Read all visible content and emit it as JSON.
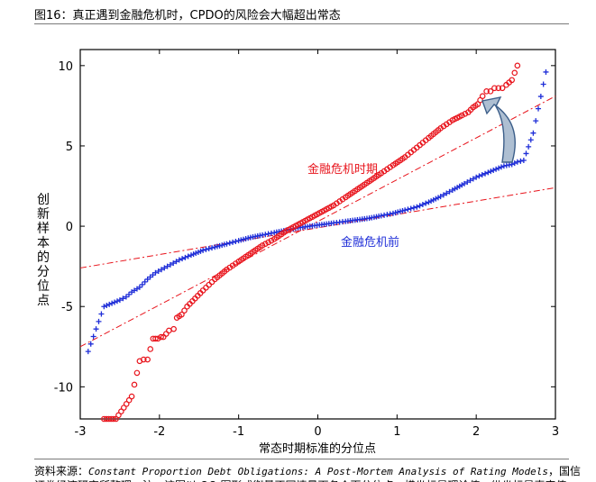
{
  "figure": {
    "title": "图16：真正遇到金融危机时，CPDO的风险会大幅超出常态",
    "source_prefix": "资料来源：",
    "source_title": "Constant Proportion Debt Obligations: A Post-Mortem Analysis of Rating Models",
    "source_suffix": "，国信",
    "note": "证券经济研究所整理。注：该图以 QQ 图形式衡量不同情景下各个百分位点，横坐标是理论值，纵坐标是真实值"
  },
  "chart_data": {
    "type": "scatter",
    "title": "图16：真正遇到金融危机时，CPDO的风险会大幅超出常态",
    "xlabel": "常态时期标准的分位点",
    "ylabel": "创新样本的分位点",
    "xlim": [
      -3,
      3
    ],
    "ylim": [
      -12,
      11
    ],
    "xticks": [
      -3,
      -2,
      -1,
      0,
      1,
      2,
      3
    ],
    "yticks": [
      -10,
      -5,
      0,
      5,
      10
    ],
    "annotations": [
      "金融危机时期",
      "金融危机前"
    ],
    "colors": {
      "crisis": "#e8141c",
      "pre_crisis": "#1f2ed8",
      "reference": "#e8141c",
      "arrow_fill": "#aebfd2",
      "arrow_stroke": "#3d5f8a"
    },
    "series": [
      {
        "name": "金融危机时期",
        "marker": "circle",
        "x": [
          -2.7,
          -2.55,
          -2.35,
          -2.25,
          -2.2,
          -2.15,
          -2.08,
          -2.02,
          -1.98,
          -1.95,
          -1.88,
          -1.82,
          -1.78,
          -1.72,
          -1.65,
          -1.55,
          -1.45,
          -1.3,
          -1.15,
          -1.0,
          -0.85,
          -0.7,
          -0.55,
          -0.4,
          -0.25,
          -0.1,
          0.05,
          0.2,
          0.35,
          0.5,
          0.65,
          0.8,
          0.95,
          1.1,
          1.25,
          1.4,
          1.55,
          1.7,
          1.82,
          1.9,
          1.96,
          2.02,
          2.08,
          2.13,
          2.18,
          2.23,
          2.28,
          2.33,
          2.38,
          2.45,
          2.52
        ],
        "y": [
          -12.0,
          -12.0,
          -10.6,
          -8.4,
          -8.3,
          -8.3,
          -7.0,
          -7.0,
          -6.9,
          -6.9,
          -6.5,
          -6.4,
          -5.7,
          -5.5,
          -5.0,
          -4.5,
          -4.0,
          -3.3,
          -2.7,
          -2.2,
          -1.7,
          -1.2,
          -0.8,
          -0.3,
          0.1,
          0.5,
          0.9,
          1.3,
          1.8,
          2.3,
          2.8,
          3.3,
          3.8,
          4.3,
          4.9,
          5.5,
          6.1,
          6.6,
          6.9,
          7.1,
          7.4,
          7.6,
          8.1,
          8.4,
          8.4,
          8.6,
          8.6,
          8.6,
          8.8,
          9.1,
          10.0
        ]
      },
      {
        "name": "金融危机前",
        "marker": "plus",
        "x": [
          -2.9,
          -2.7,
          -2.6,
          -2.5,
          -2.42,
          -2.35,
          -2.25,
          -2.15,
          -2.05,
          -1.9,
          -1.75,
          -1.6,
          -1.45,
          -1.3,
          -1.15,
          -1.0,
          -0.85,
          -0.7,
          -0.55,
          -0.4,
          -0.25,
          -0.1,
          0.05,
          0.2,
          0.35,
          0.5,
          0.65,
          0.8,
          0.95,
          1.1,
          1.25,
          1.4,
          1.55,
          1.7,
          1.85,
          2.0,
          2.15,
          2.25,
          2.35,
          2.45,
          2.52,
          2.6,
          2.72,
          2.88
        ],
        "y": [
          -7.8,
          -5.0,
          -4.8,
          -4.6,
          -4.4,
          -4.1,
          -3.8,
          -3.3,
          -2.9,
          -2.5,
          -2.1,
          -1.8,
          -1.5,
          -1.3,
          -1.1,
          -0.9,
          -0.7,
          -0.55,
          -0.4,
          -0.25,
          -0.1,
          0.0,
          0.1,
          0.2,
          0.3,
          0.4,
          0.5,
          0.65,
          0.8,
          1.0,
          1.2,
          1.5,
          1.85,
          2.25,
          2.65,
          3.05,
          3.35,
          3.55,
          3.75,
          3.85,
          4.0,
          4.1,
          5.8,
          9.6
        ]
      }
    ],
    "reference_lines": [
      {
        "name": "金融危机时期参考线",
        "x": [
          -3,
          3
        ],
        "y": [
          -7.5,
          8.1
        ]
      },
      {
        "name": "金融危机前参考线",
        "x": [
          -3,
          3
        ],
        "y": [
          -2.6,
          2.4
        ]
      }
    ]
  }
}
